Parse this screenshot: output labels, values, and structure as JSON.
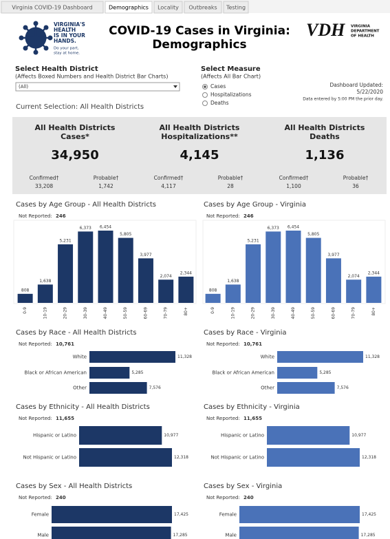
{
  "tabs": [
    {
      "label": "Virginia COVID-19 Dashboard",
      "active": false
    },
    {
      "label": "Demographics",
      "active": true
    },
    {
      "label": "Locality",
      "active": false
    },
    {
      "label": "Outbreaks",
      "active": false
    },
    {
      "label": "Testing",
      "active": false
    }
  ],
  "header": {
    "logo_lines": [
      "VIRGINIA'S",
      "HEALTH",
      "IS IN YOUR",
      "HANDS."
    ],
    "logo_tagline": [
      "Do your part,",
      "stay at home."
    ],
    "title": [
      "COVID-19 Cases in Virginia:",
      "Demographics"
    ],
    "vdh": "VDH",
    "vdh_name": [
      "VIRGINIA",
      "DEPARTMENT",
      "OF HEALTH"
    ]
  },
  "filters": {
    "district_label": "Select Health District",
    "district_note": "(Affects Boxed Numbers and Health District Bar Charts)",
    "district_value": "(All)",
    "measure_label": "Select Measure",
    "measure_note": "(Affects All Bar Chart)",
    "measure_options": [
      {
        "label": "Cases",
        "selected": true
      },
      {
        "label": "Hospitalizations",
        "selected": false
      },
      {
        "label": "Deaths",
        "selected": false
      }
    ],
    "updated_label": "Dashboard Updated:",
    "updated_date": "5/22/2020",
    "updated_note": "Data entered by 5:00 PM the prior day.",
    "current_selection": "Current Selection: All Health Districts"
  },
  "summary": [
    {
      "title": [
        "All Health Districts",
        "Cases*"
      ],
      "total": "34,950",
      "confirmed_label": "Confirmed†",
      "confirmed": "33,208",
      "probable_label": "Probable†",
      "probable": "1,742"
    },
    {
      "title": [
        "All Health Districts",
        "Hospitalizations**"
      ],
      "total": "4,145",
      "confirmed_label": "Confirmed†",
      "confirmed": "4,117",
      "probable_label": "Probable†",
      "probable": "28"
    },
    {
      "title": [
        "All Health Districts",
        "Deaths"
      ],
      "total": "1,136",
      "confirmed_label": "Confirmed†",
      "confirmed": "1,100",
      "probable_label": "Probable†",
      "probable": "36"
    }
  ],
  "charts": [
    {
      "type": "column",
      "title": "Cases by Age Group - All Health Districts",
      "not_reported_label": "Not Reported:",
      "not_reported": "246",
      "color": "#1c3766",
      "categories": [
        "0-9",
        "10-19",
        "20-29",
        "30-39",
        "40-49",
        "50-59",
        "60-69",
        "70-79",
        "80+"
      ],
      "values": [
        808,
        1638,
        5231,
        6373,
        6454,
        5805,
        3977,
        2074,
        2344
      ],
      "value_labels": [
        "808",
        "1,638",
        "5,231",
        "6,373",
        "6,454",
        "5,805",
        "3,977",
        "2,074",
        "2,344"
      ]
    },
    {
      "type": "column",
      "title": "Cases by Age Group - Virginia",
      "not_reported_label": "Not Reported:",
      "not_reported": "246",
      "color": "#4a72b8",
      "categories": [
        "0-9",
        "10-19",
        "20-29",
        "30-39",
        "40-49",
        "50-59",
        "60-69",
        "70-79",
        "80+"
      ],
      "values": [
        808,
        1638,
        5231,
        6373,
        6454,
        5805,
        3977,
        2074,
        2344
      ],
      "value_labels": [
        "808",
        "1,638",
        "5,231",
        "6,373",
        "6,454",
        "5,805",
        "3,977",
        "2,074",
        "2,344"
      ]
    },
    {
      "type": "bar",
      "title": "Cases by Race - All Health Districts",
      "not_reported_label": "Not Reported:",
      "not_reported": "10,761",
      "color": "#1c3766",
      "categories": [
        "White",
        "Black or African American",
        "Other"
      ],
      "values": [
        11328,
        5285,
        7576
      ],
      "value_labels": [
        "11,328",
        "5,285",
        "7,576"
      ]
    },
    {
      "type": "bar",
      "title": "Cases by Race - Virginia",
      "not_reported_label": "Not Reported:",
      "not_reported": "10,761",
      "color": "#4a72b8",
      "categories": [
        "White",
        "Black or African American",
        "Other"
      ],
      "values": [
        11328,
        5285,
        7576
      ],
      "value_labels": [
        "11,328",
        "5,285",
        "7,576"
      ]
    },
    {
      "type": "bar",
      "title": "Cases by Ethnicity - All Health Districts",
      "not_reported_label": "Not Reported:",
      "not_reported": "11,655",
      "color": "#1c3766",
      "categories": [
        "Hispanic or Latino",
        "Not Hispanic or Latino"
      ],
      "values": [
        10977,
        12318
      ],
      "value_labels": [
        "10,977",
        "12,318"
      ]
    },
    {
      "type": "bar",
      "title": "Cases by Ethnicity - Virginia",
      "not_reported_label": "Not Reported:",
      "not_reported": "11,655",
      "color": "#4a72b8",
      "categories": [
        "Hispanic or Latino",
        "Not Hispanic or Latino"
      ],
      "values": [
        10977,
        12318
      ],
      "value_labels": [
        "10,977",
        "12,318"
      ]
    },
    {
      "type": "bar",
      "title": "Cases by Sex - All Health Districts",
      "not_reported_label": "Not Reported:",
      "not_reported": "240",
      "color": "#1c3766",
      "categories": [
        "Female",
        "Male"
      ],
      "values": [
        17425,
        17285
      ],
      "value_labels": [
        "17,425",
        "17,285"
      ]
    },
    {
      "type": "bar",
      "title": "Cases by Sex - Virginia",
      "not_reported_label": "Not Reported:",
      "not_reported": "240",
      "color": "#4a72b8",
      "categories": [
        "Female",
        "Male"
      ],
      "values": [
        17425,
        17285
      ],
      "value_labels": [
        "17,425",
        "17,285"
      ]
    }
  ]
}
